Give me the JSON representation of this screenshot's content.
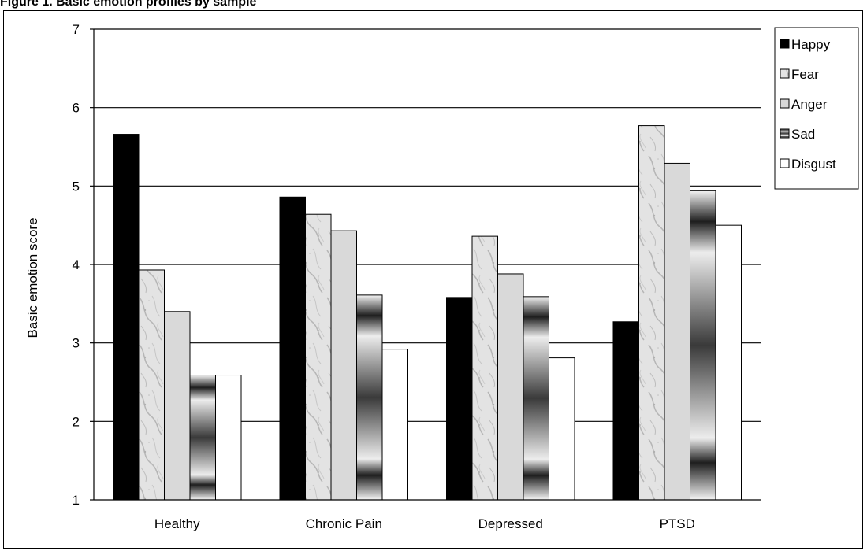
{
  "header": {
    "title": "Figure 1. Basic emotion profiles by sample"
  },
  "chart_data": {
    "type": "bar",
    "title": "",
    "xlabel": "",
    "ylabel": "Basic emotion score",
    "ylim": [
      1,
      7
    ],
    "yticks": [
      1,
      2,
      3,
      4,
      5,
      6,
      7
    ],
    "ytick_labels": [
      "1",
      "2",
      "3",
      "4",
      "5",
      "6",
      "7"
    ],
    "grid": true,
    "legend_position": "right",
    "categories": [
      "Healthy",
      "Chronic Pain",
      "Depressed",
      "PTSD"
    ],
    "series": [
      {
        "name": "Happy",
        "values": [
          5.66,
          4.86,
          3.58,
          3.27
        ],
        "style": "black"
      },
      {
        "name": "Fear",
        "values": [
          3.93,
          4.64,
          4.36,
          5.77
        ],
        "style": "marble"
      },
      {
        "name": "Anger",
        "values": [
          3.4,
          4.43,
          3.88,
          5.29
        ],
        "style": "lightgray"
      },
      {
        "name": "Sad",
        "values": [
          2.59,
          3.61,
          3.59,
          4.94
        ],
        "style": "cylinder"
      },
      {
        "name": "Disgust",
        "values": [
          2.59,
          2.92,
          2.81,
          4.5
        ],
        "style": "white"
      }
    ]
  }
}
